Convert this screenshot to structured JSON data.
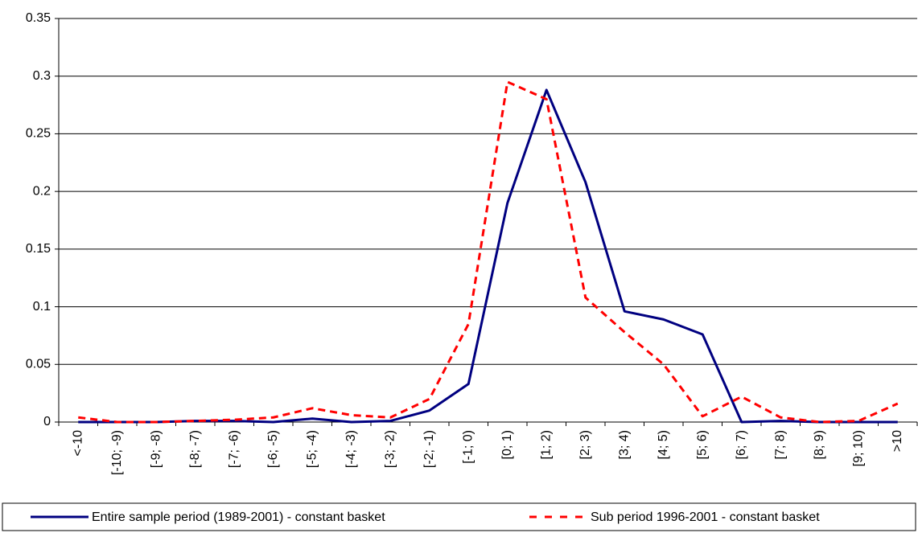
{
  "chart_data": {
    "type": "line",
    "categories": [
      "<-10",
      "[-10; -9)",
      "[-9; -8)",
      "[-8; -7)",
      "[-7; -6)",
      "[-6; -5)",
      "[-5; -4)",
      "[-4; -3)",
      "[-3; -2)",
      "[-2; -1)",
      "[-1; 0)",
      "[0; 1)",
      "[1; 2)",
      "[2; 3)",
      "[3; 4)",
      "[4; 5)",
      "[5; 6)",
      "[6; 7)",
      "[7; 8)",
      "[8; 9)",
      "[9; 10)",
      ">10"
    ],
    "series": [
      {
        "name": "Entire sample period (1989-2001) - constant basket",
        "color": "#000080",
        "dashed": false,
        "values": [
          0,
          0,
          0,
          0.001,
          0.001,
          0,
          0.003,
          0,
          0.001,
          0.01,
          0.033,
          0.19,
          0.288,
          0.208,
          0.096,
          0.089,
          0.076,
          0,
          0.001,
          0,
          0,
          0
        ]
      },
      {
        "name": "Sub period 1996-2001 - constant basket",
        "color": "#ff0000",
        "dashed": true,
        "values": [
          0.004,
          0,
          0,
          0.001,
          0.002,
          0.004,
          0.012,
          0.006,
          0.004,
          0.02,
          0.085,
          0.295,
          0.28,
          0.108,
          0.078,
          0.05,
          0.005,
          0.022,
          0.004,
          0,
          0.001,
          0.016
        ]
      }
    ],
    "ylim": [
      0,
      0.35
    ],
    "yticks": [
      0,
      0.05,
      0.1,
      0.15,
      0.2,
      0.25,
      0.3,
      0.35
    ],
    "grid": true,
    "legend": "bottom"
  }
}
